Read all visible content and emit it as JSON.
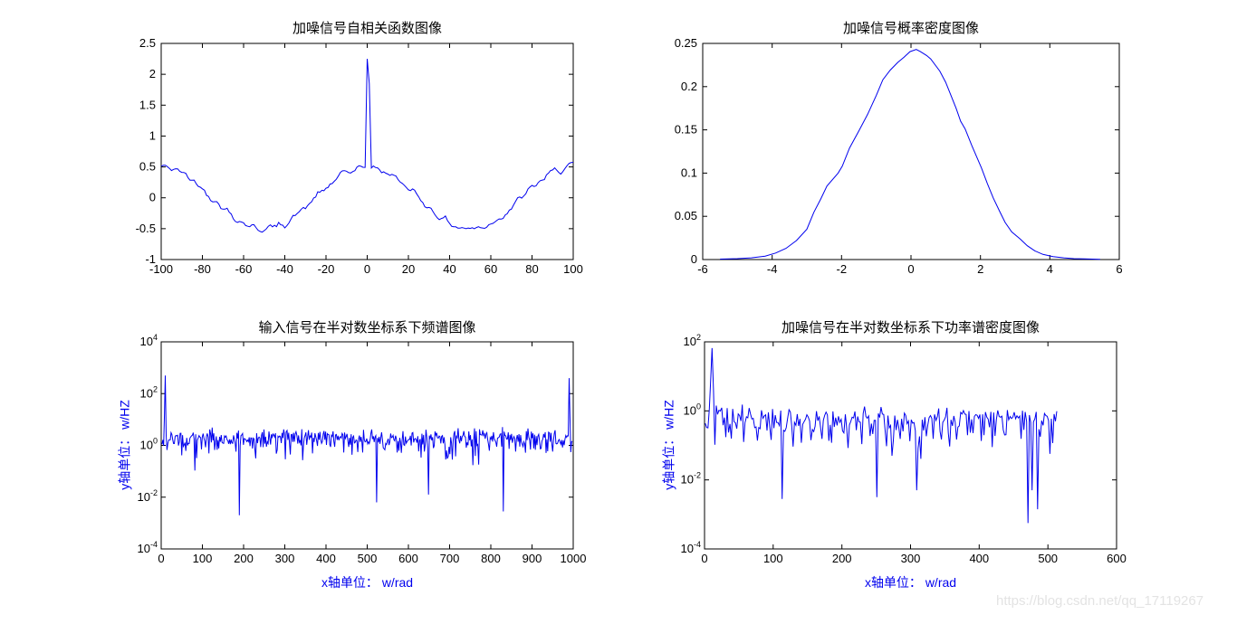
{
  "watermark": "https://blog.csdn.net/qq_17119267",
  "colors": {
    "line": "#0000ee",
    "axis": "#000000",
    "unit_label": "#0000ee",
    "title": "#000000",
    "watermark": "#e3e3e3",
    "background": "#ffffff"
  },
  "chart_data": [
    {
      "id": "autocorr",
      "type": "line",
      "title": "加噪信号自相关函数图像",
      "xlabel": "",
      "ylabel": "",
      "xlim": [
        -100,
        100
      ],
      "ylim": [
        -1,
        2.5
      ],
      "xticks": [
        -100,
        -80,
        -60,
        -40,
        -20,
        0,
        20,
        40,
        60,
        80,
        100
      ],
      "yticks": [
        -1,
        -0.5,
        0,
        0.5,
        1,
        1.5,
        2,
        2.5
      ],
      "grid": false,
      "legend": null,
      "series": {
        "kind": "cosine_noise",
        "description": "autocorrelation of noisy sinusoid: 0.5*cos(2*pi*tau/100) plus noise, delta spike at tau=0",
        "amplitude": 0.5,
        "period": 100,
        "noise": 0.05,
        "n": 201,
        "x_start": -100,
        "x_end": 100,
        "seed": 42,
        "spikes": [
          {
            "x": 0,
            "y": 2.25
          },
          {
            "x": 1,
            "y": 1.85
          }
        ]
      }
    },
    {
      "id": "pdf",
      "type": "line",
      "title": "加噪信号概率密度图像",
      "xlabel": "",
      "ylabel": "",
      "xlim": [
        -6,
        6
      ],
      "ylim": [
        0,
        0.25
      ],
      "xticks": [
        -6,
        -4,
        -2,
        0,
        2,
        4,
        6
      ],
      "yticks": [
        0,
        0.05,
        0.1,
        0.15,
        0.2,
        0.25
      ],
      "grid": false,
      "legend": null,
      "series": {
        "kind": "keypoints",
        "description": "estimated probability density, bell curve peaking ~0.243 near x=0.1",
        "points": [
          [
            -5.5,
            0.0005
          ],
          [
            -5.0,
            0.001
          ],
          [
            -4.6,
            0.002
          ],
          [
            -4.2,
            0.004
          ],
          [
            -3.9,
            0.0075
          ],
          [
            -3.6,
            0.013
          ],
          [
            -3.3,
            0.022
          ],
          [
            -3.0,
            0.035
          ],
          [
            -2.8,
            0.0546
          ],
          [
            -2.6,
            0.07
          ],
          [
            -2.42,
            0.085
          ],
          [
            -2.1,
            0.1
          ],
          [
            -1.98,
            0.108
          ],
          [
            -1.77,
            0.129
          ],
          [
            -1.5,
            0.149
          ],
          [
            -1.25,
            0.168
          ],
          [
            -1.0,
            0.19
          ],
          [
            -0.81,
            0.208
          ],
          [
            -0.6,
            0.219
          ],
          [
            -0.38,
            0.228
          ],
          [
            -0.2,
            0.234
          ],
          [
            -0.03,
            0.2405
          ],
          [
            0.15,
            0.243
          ],
          [
            0.27,
            0.2405
          ],
          [
            0.45,
            0.236
          ],
          [
            0.57,
            0.232
          ],
          [
            0.83,
            0.218
          ],
          [
            1.0,
            0.205
          ],
          [
            1.13,
            0.192
          ],
          [
            1.3,
            0.175
          ],
          [
            1.43,
            0.16
          ],
          [
            1.56,
            0.151
          ],
          [
            1.75,
            0.132
          ],
          [
            2.03,
            0.106
          ],
          [
            2.2,
            0.088
          ],
          [
            2.37,
            0.071
          ],
          [
            2.55,
            0.056
          ],
          [
            2.71,
            0.043
          ],
          [
            2.9,
            0.032
          ],
          [
            3.14,
            0.024
          ],
          [
            3.35,
            0.016
          ],
          [
            3.57,
            0.01
          ],
          [
            3.8,
            0.006
          ],
          [
            4.09,
            0.0035
          ],
          [
            4.4,
            0.002
          ],
          [
            4.69,
            0.001
          ],
          [
            5.0,
            0.0007
          ],
          [
            5.45,
            0.0003
          ]
        ]
      }
    },
    {
      "id": "spectrum",
      "type": "line-logy",
      "title": "输入信号在半对数坐标系下频谱图像",
      "xlabel": "x轴单位： w/rad",
      "ylabel": "y轴单位： w/HZ",
      "xlim": [
        0,
        1000
      ],
      "ylim_exp": [
        -4,
        4
      ],
      "xticks": [
        0,
        100,
        200,
        300,
        400,
        500,
        600,
        700,
        800,
        900,
        1000
      ],
      "ytick_exps": [
        -4,
        -2,
        0,
        2,
        4
      ],
      "grid": false,
      "legend": null,
      "series": {
        "kind": "rayleigh_log",
        "description": "FFT magnitude of noisy signal on semilog-y axis, noise band around 10^0, symmetric spectral peaks near x=10 and x=990",
        "n": 500,
        "x0": 2,
        "x1": 998,
        "scale": 1.4,
        "seed": 20107,
        "floor": 0.0003,
        "spikes": [
          {
            "x": 8,
            "logy": 1.2
          },
          {
            "x": 10,
            "logy": 2.7
          },
          {
            "x": 990,
            "logy": 2.6
          },
          {
            "x": 992,
            "logy": 1.1
          }
        ],
        "dips": [
          {
            "x": 190,
            "logy": -2.7
          },
          {
            "x": 522,
            "logy": -2.2
          },
          {
            "x": 648,
            "logy": -1.9
          },
          {
            "x": 830,
            "logy": -2.55
          }
        ]
      }
    },
    {
      "id": "psd",
      "type": "line-logy",
      "title": "加噪信号在半对数坐标系下功率谱密度图像",
      "xlabel": "x轴单位： w/rad",
      "ylabel": "y轴单位： w/HZ",
      "xlim": [
        0,
        600
      ],
      "ylim_exp": [
        -4,
        2
      ],
      "xticks": [
        0,
        100,
        200,
        300,
        400,
        500,
        600
      ],
      "ytick_exps": [
        -4,
        -2,
        0,
        2
      ],
      "grid": false,
      "legend": null,
      "series": {
        "kind": "rayleigh_log",
        "description": "power spectral density of noisy signal on semilog-y axis, data 0..512, peak ~65 near x=12, deep notches near x=470-485",
        "n": 257,
        "x0": 1,
        "x1": 513,
        "scale": 0.42,
        "seed": 771,
        "floor": 0.0003,
        "spikes": [
          {
            "x": 9,
            "logy": 0.9
          },
          {
            "x": 11,
            "logy": 1.82
          },
          {
            "x": 13,
            "logy": 0.6
          }
        ],
        "dips": [
          {
            "x": 113,
            "logy": -2.55
          },
          {
            "x": 251,
            "logy": -2.5
          },
          {
            "x": 309,
            "logy": -2.3
          },
          {
            "x": 471,
            "logy": -3.25
          },
          {
            "x": 477,
            "logy": -2.3
          },
          {
            "x": 485,
            "logy": -2.85
          }
        ]
      }
    }
  ]
}
